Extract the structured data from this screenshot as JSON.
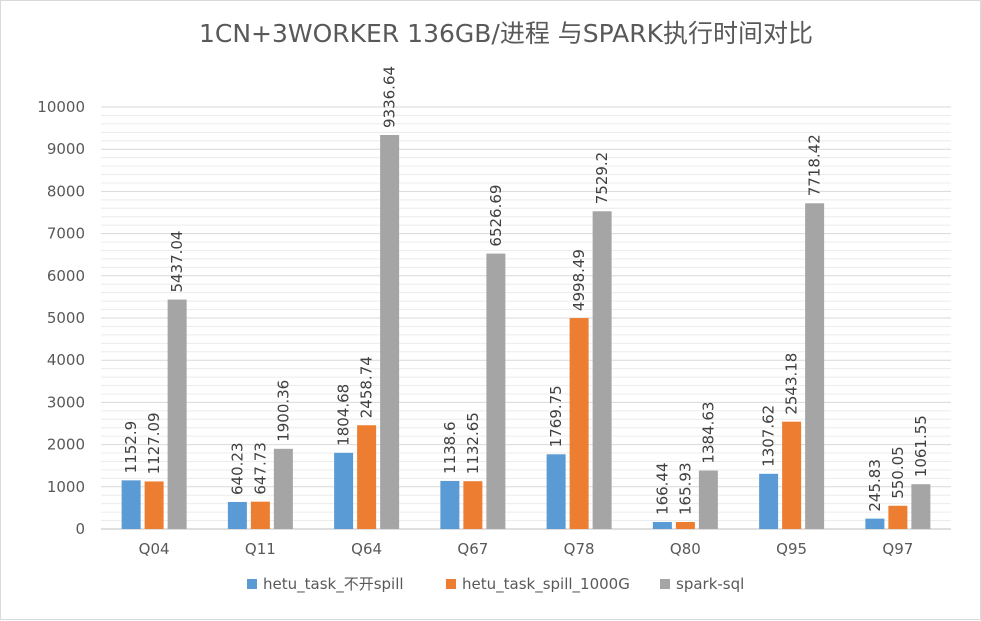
{
  "chart_data": {
    "type": "bar",
    "title": "1CN+3WORKER 136GB/进程 与SPARK执行时间对比",
    "xlabel": "",
    "ylabel": "",
    "ylim": [
      0,
      10000
    ],
    "yticks": [
      0,
      1000,
      2000,
      3000,
      4000,
      5000,
      6000,
      7000,
      8000,
      9000,
      10000
    ],
    "grid": true,
    "legend_position": "bottom",
    "categories": [
      "Q04",
      "Q11",
      "Q64",
      "Q67",
      "Q78",
      "Q80",
      "Q95",
      "Q97"
    ],
    "series": [
      {
        "name": "hetu_task_不开spill",
        "color": "#5B9BD5",
        "values": [
          1152.9,
          640.23,
          1804.68,
          1138.6,
          1769.75,
          166.44,
          1307.62,
          245.83
        ],
        "labels": [
          "1152.9",
          "640.23",
          "1804.68",
          "1138.6",
          "1769.75",
          "166.44",
          "1307.62",
          "245.83"
        ]
      },
      {
        "name": "hetu_task_spill_1000G",
        "color": "#ED7D31",
        "values": [
          1127.09,
          647.73,
          2458.74,
          1132.65,
          4998.49,
          165.93,
          2543.18,
          550.05
        ],
        "labels": [
          "1127.09",
          "647.73",
          "2458.74",
          "1132.65",
          "4998.49",
          "165.93",
          "2543.18",
          "550.05"
        ]
      },
      {
        "name": "spark-sql",
        "color": "#A5A5A5",
        "values": [
          5437.04,
          1900.36,
          9336.64,
          6526.69,
          7529.2,
          1384.63,
          7718.42,
          1061.55
        ],
        "labels": [
          "5437.04",
          "1900.36",
          "9336.64",
          "6526.69",
          "7529.2",
          "1384.63",
          "7718.42",
          "1061.55"
        ]
      }
    ]
  }
}
